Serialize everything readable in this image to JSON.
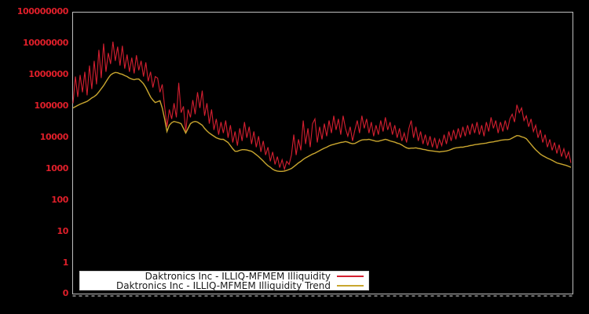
{
  "figure": {
    "background_color": "#000000",
    "plot_border_color": "#bfbfbf",
    "x_minor_tick_color": "#999999"
  },
  "y_axis": {
    "tick_label_color": "#e01f2a",
    "tick_labels": [
      "0",
      "1",
      "10",
      "100",
      "1000",
      "10000",
      "100000",
      "1000000",
      "10000000",
      "100000000"
    ]
  },
  "legend": {
    "items": [
      {
        "label": "Daktronics Inc - ILLIQ-MFMEM Illiquidity",
        "color": "#d41f30",
        "swatch": "line"
      },
      {
        "label": "Daktronics Inc - ILLIQ-MFMEM Illiquidity Trend",
        "color": "#c9a62f",
        "swatch": "line"
      }
    ]
  },
  "chart_data": {
    "type": "line",
    "title": "",
    "xlabel": "",
    "ylabel": "",
    "y_scale": "symlog",
    "ylim": [
      0,
      100000000
    ],
    "yticks": [
      0,
      1,
      10,
      100,
      1000,
      10000,
      100000,
      1000000,
      10000000,
      100000000
    ],
    "x_tick_labels_visible": false,
    "grid": false,
    "legend_position": "lower-left",
    "value_scale_note": "series values stored as log10(value) as read off the log axis",
    "series": [
      {
        "name": "Daktronics Inc - ILLIQ-MFMEM Illiquidity",
        "color": "#d41f30",
        "line_width": 1.1,
        "log10_values": [
          5.1,
          5.95,
          5.3,
          6.0,
          5.45,
          6.1,
          5.35,
          6.3,
          5.55,
          6.45,
          5.7,
          6.8,
          5.9,
          7.0,
          6.1,
          6.7,
          6.35,
          7.06,
          6.45,
          6.9,
          6.3,
          6.93,
          6.2,
          6.65,
          6.1,
          6.55,
          6.05,
          6.63,
          6.15,
          6.45,
          5.95,
          6.4,
          5.8,
          6.1,
          5.6,
          5.95,
          5.9,
          5.45,
          5.7,
          5.0,
          4.35,
          4.9,
          4.6,
          5.1,
          4.65,
          5.75,
          4.8,
          5.0,
          4.2,
          4.9,
          4.65,
          5.2,
          4.75,
          5.45,
          4.95,
          5.5,
          4.7,
          5.1,
          4.45,
          4.9,
          4.25,
          4.6,
          4.1,
          4.5,
          4.15,
          4.55,
          4.0,
          4.4,
          3.85,
          4.2,
          3.75,
          4.3,
          3.9,
          4.5,
          4.0,
          4.35,
          3.8,
          4.2,
          3.7,
          4.05,
          3.55,
          3.9,
          3.45,
          3.7,
          3.25,
          3.55,
          3.15,
          3.4,
          3.05,
          3.3,
          3.0,
          3.25,
          3.15,
          3.45,
          4.1,
          3.45,
          3.95,
          3.6,
          4.55,
          3.8,
          4.3,
          3.7,
          4.45,
          4.6,
          3.85,
          4.35,
          3.95,
          4.45,
          4.05,
          4.55,
          4.15,
          4.7,
          4.25,
          4.6,
          4.1,
          4.7,
          4.3,
          4.05,
          4.35,
          3.9,
          4.25,
          4.55,
          4.15,
          4.7,
          4.3,
          4.6,
          4.15,
          4.5,
          4.05,
          4.4,
          4.1,
          4.55,
          4.2,
          4.65,
          4.25,
          4.5,
          4.1,
          4.4,
          4.0,
          4.3,
          3.9,
          4.15,
          3.85,
          4.3,
          4.55,
          4.0,
          4.35,
          3.9,
          4.2,
          3.8,
          4.1,
          3.75,
          4.05,
          3.7,
          4.0,
          3.65,
          3.95,
          3.75,
          4.1,
          3.8,
          4.2,
          3.9,
          4.25,
          3.95,
          4.3,
          4.0,
          4.35,
          4.05,
          4.4,
          4.1,
          4.45,
          4.15,
          4.5,
          4.1,
          4.4,
          4.05,
          4.5,
          4.2,
          4.65,
          4.3,
          4.55,
          4.15,
          4.5,
          4.2,
          4.55,
          4.25,
          4.6,
          4.75,
          4.5,
          5.05,
          4.8,
          4.95,
          4.55,
          4.7,
          4.35,
          4.6,
          4.2,
          4.4,
          4.0,
          4.25,
          3.85,
          4.1,
          3.7,
          3.95,
          3.6,
          3.85,
          3.5,
          3.78,
          3.4,
          3.65,
          3.35,
          3.55,
          3.2
        ]
      },
      {
        "name": "Daktronics Inc - ILLIQ-MFMEM Illiquidity Trend",
        "color": "#c9a62f",
        "line_width": 1.4,
        "log10_values": [
          4.95,
          4.99,
          5.03,
          5.07,
          5.1,
          5.13,
          5.16,
          5.21,
          5.27,
          5.31,
          5.37,
          5.46,
          5.56,
          5.66,
          5.78,
          5.9,
          6.0,
          6.05,
          6.08,
          6.07,
          6.04,
          6.02,
          5.98,
          5.95,
          5.9,
          5.87,
          5.85,
          5.87,
          5.87,
          5.8,
          5.72,
          5.6,
          5.45,
          5.3,
          5.2,
          5.12,
          5.15,
          5.18,
          4.95,
          4.6,
          4.2,
          4.4,
          4.48,
          4.52,
          4.5,
          4.48,
          4.45,
          4.3,
          4.15,
          4.3,
          4.45,
          4.5,
          4.52,
          4.5,
          4.45,
          4.4,
          4.3,
          4.22,
          4.15,
          4.1,
          4.05,
          4.0,
          3.97,
          3.95,
          3.95,
          3.9,
          3.85,
          3.75,
          3.65,
          3.57,
          3.57,
          3.6,
          3.62,
          3.62,
          3.61,
          3.59,
          3.57,
          3.52,
          3.46,
          3.4,
          3.33,
          3.26,
          3.18,
          3.11,
          3.06,
          3.0,
          2.96,
          2.94,
          2.93,
          2.93,
          2.94,
          2.96,
          2.99,
          3.02,
          3.08,
          3.14,
          3.2,
          3.25,
          3.31,
          3.36,
          3.4,
          3.44,
          3.48,
          3.51,
          3.55,
          3.59,
          3.63,
          3.67,
          3.7,
          3.74,
          3.77,
          3.79,
          3.81,
          3.83,
          3.85,
          3.86,
          3.88,
          3.86,
          3.83,
          3.81,
          3.82,
          3.86,
          3.9,
          3.93,
          3.94,
          3.94,
          3.95,
          3.93,
          3.91,
          3.89,
          3.89,
          3.91,
          3.93,
          3.95,
          3.93,
          3.9,
          3.88,
          3.86,
          3.83,
          3.81,
          3.77,
          3.72,
          3.68,
          3.66,
          3.67,
          3.67,
          3.68,
          3.66,
          3.65,
          3.63,
          3.62,
          3.6,
          3.59,
          3.58,
          3.57,
          3.56,
          3.55,
          3.56,
          3.57,
          3.58,
          3.6,
          3.63,
          3.66,
          3.68,
          3.69,
          3.7,
          3.7,
          3.72,
          3.73,
          3.75,
          3.76,
          3.78,
          3.79,
          3.8,
          3.81,
          3.82,
          3.83,
          3.85,
          3.86,
          3.87,
          3.89,
          3.9,
          3.92,
          3.93,
          3.94,
          3.94,
          3.95,
          3.99,
          4.03,
          4.07,
          4.06,
          4.03,
          4.01,
          3.97,
          3.88,
          3.79,
          3.7,
          3.62,
          3.55,
          3.48,
          3.43,
          3.39,
          3.35,
          3.32,
          3.28,
          3.24,
          3.2,
          3.18,
          3.16,
          3.14,
          3.12,
          3.09,
          3.06
        ]
      }
    ]
  }
}
